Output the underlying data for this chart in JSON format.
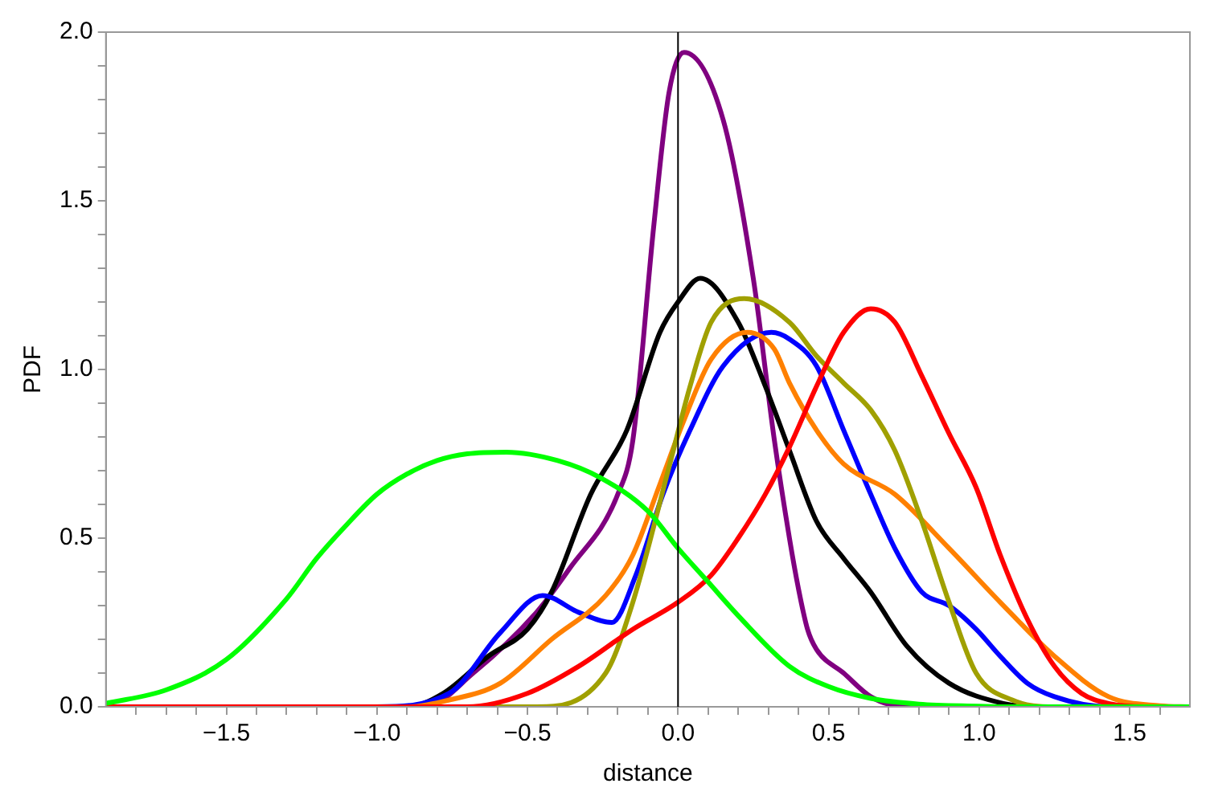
{
  "chart_data": {
    "type": "line",
    "xlabel": "distance",
    "ylabel": "PDF",
    "xlim": [
      -1.9,
      1.7
    ],
    "ylim": [
      0,
      2
    ],
    "xticks": [
      {
        "value": -1.8,
        "label": null
      },
      {
        "value": -1.7,
        "label": null
      },
      {
        "value": -1.6,
        "label": null
      },
      {
        "value": -1.5,
        "label": "−1.5"
      },
      {
        "value": -1.4,
        "label": null
      },
      {
        "value": -1.3,
        "label": null
      },
      {
        "value": -1.2,
        "label": null
      },
      {
        "value": -1.1,
        "label": null
      },
      {
        "value": -1.0,
        "label": "−1.0"
      },
      {
        "value": -0.9,
        "label": null
      },
      {
        "value": -0.8,
        "label": null
      },
      {
        "value": -0.7,
        "label": null
      },
      {
        "value": -0.6,
        "label": null
      },
      {
        "value": -0.5,
        "label": "−0.5"
      },
      {
        "value": -0.4,
        "label": null
      },
      {
        "value": -0.3,
        "label": null
      },
      {
        "value": -0.2,
        "label": null
      },
      {
        "value": -0.1,
        "label": null
      },
      {
        "value": 0,
        "label": "0.0"
      },
      {
        "value": 0.1,
        "label": null
      },
      {
        "value": 0.2,
        "label": null
      },
      {
        "value": 0.3,
        "label": null
      },
      {
        "value": 0.4,
        "label": null
      },
      {
        "value": 0.5,
        "label": "0.5"
      },
      {
        "value": 0.6,
        "label": null
      },
      {
        "value": 0.7,
        "label": null
      },
      {
        "value": 0.8,
        "label": null
      },
      {
        "value": 0.9,
        "label": null
      },
      {
        "value": 1.0,
        "label": "1.0"
      },
      {
        "value": 1.1,
        "label": null
      },
      {
        "value": 1.2,
        "label": null
      },
      {
        "value": 1.3,
        "label": null
      },
      {
        "value": 1.4,
        "label": null
      },
      {
        "value": 1.5,
        "label": "1.5"
      },
      {
        "value": 1.6,
        "label": null
      }
    ],
    "yticks": [
      {
        "value": 0,
        "label": "0.0"
      },
      {
        "value": 0.1,
        "label": null
      },
      {
        "value": 0.2,
        "label": null
      },
      {
        "value": 0.3,
        "label": null
      },
      {
        "value": 0.4,
        "label": null
      },
      {
        "value": 0.5,
        "label": "0.5"
      },
      {
        "value": 0.6,
        "label": null
      },
      {
        "value": 0.7,
        "label": null
      },
      {
        "value": 0.8,
        "label": null
      },
      {
        "value": 0.9,
        "label": null
      },
      {
        "value": 1.0,
        "label": "1.0"
      },
      {
        "value": 1.1,
        "label": null
      },
      {
        "value": 1.2,
        "label": null
      },
      {
        "value": 1.3,
        "label": null
      },
      {
        "value": 1.4,
        "label": null
      },
      {
        "value": 1.5,
        "label": "1.5"
      },
      {
        "value": 1.6,
        "label": null
      },
      {
        "value": 1.7,
        "label": null
      },
      {
        "value": 1.8,
        "label": null
      },
      {
        "value": 1.9,
        "label": null
      },
      {
        "value": 2.0,
        "label": "2.0"
      }
    ],
    "grid": false,
    "legend": false,
    "marker": "none",
    "line_style": "solid",
    "ref_lines": [
      {
        "axis": "x",
        "value": 0,
        "color": "#000000"
      }
    ],
    "series": [
      {
        "color": "#00ff00",
        "x": [
          -1.9,
          -1.7,
          -1.5,
          -1.3,
          -1.2,
          -1.1,
          -1.0,
          -0.9,
          -0.8,
          -0.7,
          -0.57,
          -0.4,
          -0.26,
          -0.1,
          0,
          0.1,
          0.2,
          0.37,
          0.5,
          0.64,
          0.8,
          1.0,
          1.1,
          1.7
        ],
        "values": [
          0.01,
          0.05,
          0.14,
          0.32,
          0.44,
          0.54,
          0.63,
          0.69,
          0.73,
          0.75,
          0.755,
          0.73,
          0.68,
          0.58,
          0.47,
          0.37,
          0.27,
          0.12,
          0.06,
          0.025,
          0.008,
          0.002,
          0,
          0
        ]
      },
      {
        "color": "#ff0000",
        "x": [
          -1.9,
          -0.7,
          -0.5,
          -0.33,
          -0.15,
          0,
          0.11,
          0.2,
          0.29,
          0.37,
          0.46,
          0.55,
          0.64,
          0.72,
          0.81,
          0.9,
          0.99,
          1.07,
          1.16,
          1.25,
          1.34,
          1.43,
          1.55,
          1.7
        ],
        "values": [
          0,
          0,
          0.04,
          0.12,
          0.23,
          0.31,
          0.39,
          0.5,
          0.63,
          0.77,
          0.95,
          1.11,
          1.18,
          1.14,
          0.98,
          0.81,
          0.65,
          0.45,
          0.26,
          0.12,
          0.04,
          0.01,
          0,
          0
        ]
      },
      {
        "color": "#a0a000",
        "x": [
          -1.9,
          -0.47,
          -0.24,
          -0.15,
          -0.03,
          0.04,
          0.11,
          0.22,
          0.37,
          0.46,
          0.55,
          0.64,
          0.72,
          0.81,
          0.9,
          0.99,
          1.11,
          1.25,
          1.7
        ],
        "values": [
          0,
          0,
          0.1,
          0.31,
          0.71,
          0.95,
          1.14,
          1.21,
          1.14,
          1.04,
          0.96,
          0.88,
          0.76,
          0.55,
          0.31,
          0.1,
          0.02,
          0,
          0
        ]
      },
      {
        "color": "#ff8000",
        "x": [
          -1.9,
          -0.9,
          -0.76,
          -0.59,
          -0.42,
          -0.24,
          -0.15,
          -0.06,
          0.02,
          0.11,
          0.23,
          0.32,
          0.37,
          0.46,
          0.55,
          0.72,
          0.9,
          1.07,
          1.25,
          1.43,
          1.6,
          1.7
        ],
        "values": [
          0,
          0,
          0.02,
          0.07,
          0.2,
          0.33,
          0.45,
          0.66,
          0.85,
          1.03,
          1.11,
          1.06,
          0.96,
          0.82,
          0.72,
          0.63,
          0.47,
          0.31,
          0.15,
          0.03,
          0.003,
          0
        ]
      },
      {
        "color": "#0000ff",
        "x": [
          -1.9,
          -1.0,
          -0.76,
          -0.59,
          -0.45,
          -0.33,
          -0.22,
          -0.14,
          -0.05,
          0.04,
          0.15,
          0.31,
          0.37,
          0.46,
          0.55,
          0.64,
          0.72,
          0.81,
          0.9,
          0.99,
          1.07,
          1.16,
          1.25,
          1.43,
          1.7
        ],
        "values": [
          0,
          0,
          0.04,
          0.22,
          0.33,
          0.28,
          0.25,
          0.39,
          0.63,
          0.82,
          1.01,
          1.11,
          1.09,
          1.01,
          0.82,
          0.63,
          0.47,
          0.34,
          0.3,
          0.23,
          0.15,
          0.07,
          0.03,
          0,
          0
        ]
      },
      {
        "color": "#000000",
        "x": [
          -1.9,
          -0.9,
          -0.78,
          -0.63,
          -0.5,
          -0.42,
          -0.29,
          -0.17,
          -0.06,
          0,
          0.074,
          0.2,
          0.29,
          0.37,
          0.46,
          0.55,
          0.64,
          0.76,
          0.9,
          1.08,
          1.2,
          1.7
        ],
        "values": [
          0,
          0,
          0.04,
          0.15,
          0.23,
          0.34,
          0.63,
          0.82,
          1.11,
          1.2,
          1.27,
          1.14,
          0.95,
          0.76,
          0.55,
          0.44,
          0.34,
          0.18,
          0.07,
          0.01,
          0,
          0
        ]
      },
      {
        "color": "#800080",
        "x": [
          -1.9,
          -0.84,
          -0.68,
          -0.47,
          -0.36,
          -0.2,
          -0.15,
          -0.08,
          -0.03,
          0.02,
          0.15,
          0.25,
          0.32,
          0.37,
          0.4,
          0.43,
          0.46,
          0.55,
          0.64,
          0.73,
          0.85,
          1.7
        ],
        "values": [
          0,
          0,
          0.1,
          0.28,
          0.41,
          0.63,
          0.79,
          1.43,
          1.82,
          1.94,
          1.74,
          1.27,
          0.79,
          0.5,
          0.35,
          0.23,
          0.17,
          0.1,
          0.03,
          0.003,
          0,
          0
        ]
      }
    ]
  }
}
